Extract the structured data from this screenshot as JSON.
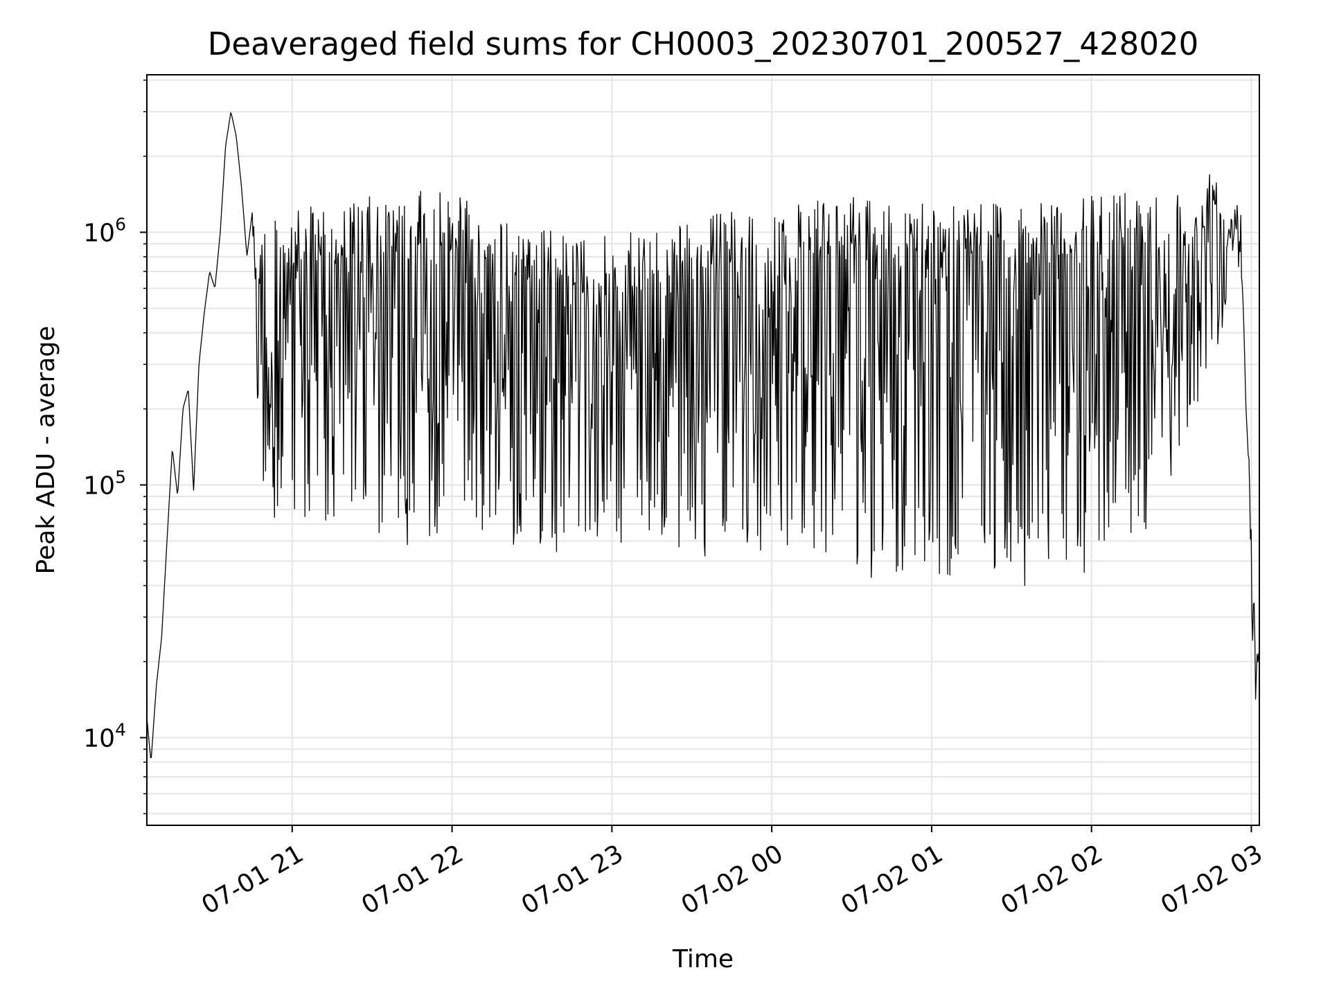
{
  "chart_data": {
    "type": "line",
    "title": "Deaveraged field sums for CH0003_20230701_200527_428020",
    "xlabel": "Time",
    "ylabel": "Peak ADU - average",
    "yscale": "log",
    "ylim": [
      4500,
      4200000
    ],
    "xlim": [
      "2023-07-01 20:05:27",
      "2023-07-02 03:03:00"
    ],
    "grid": true,
    "line_color": "#000000",
    "grid_color": "#e5e5e5",
    "x_ticks": [
      {
        "time": "2023-07-01 21:00",
        "label": "07-01 21"
      },
      {
        "time": "2023-07-01 22:00",
        "label": "07-01 22"
      },
      {
        "time": "2023-07-01 23:00",
        "label": "07-01 23"
      },
      {
        "time": "2023-07-02 00:00",
        "label": "07-02 00"
      },
      {
        "time": "2023-07-02 01:00",
        "label": "07-02 01"
      },
      {
        "time": "2023-07-02 02:00",
        "label": "07-02 02"
      },
      {
        "time": "2023-07-02 03:00",
        "label": "07-02 03"
      }
    ],
    "y_ticks": [
      {
        "value": 10000,
        "base": "10",
        "exp": "4"
      },
      {
        "value": 100000,
        "base": "10",
        "exp": "5"
      },
      {
        "value": 1000000,
        "base": "10",
        "exp": "6"
      }
    ],
    "series": [
      {
        "time": [
          "2023-07-01 20:05:27",
          "2023-07-01 20:07",
          "2023-07-01 20:09",
          "2023-07-01 20:11",
          "2023-07-01 20:13",
          "2023-07-01 20:15",
          "2023-07-01 20:17",
          "2023-07-01 20:19",
          "2023-07-01 20:21",
          "2023-07-01 20:23",
          "2023-07-01 20:25",
          "2023-07-01 20:27",
          "2023-07-01 20:29",
          "2023-07-01 20:31",
          "2023-07-01 20:33",
          "2023-07-01 20:35",
          "2023-07-01 20:37",
          "2023-07-01 20:39",
          "2023-07-01 20:41",
          "2023-07-01 20:43",
          "2023-07-01 20:45",
          "2023-07-01 20:47",
          "2023-07-01 20:50",
          "2023-07-01 20:55",
          "2023-07-01 21:00",
          "2023-07-01 21:10",
          "2023-07-01 21:20",
          "2023-07-01 21:30",
          "2023-07-01 21:40",
          "2023-07-01 21:50",
          "2023-07-01 22:00",
          "2023-07-01 22:10",
          "2023-07-01 22:20",
          "2023-07-01 22:30",
          "2023-07-01 22:40",
          "2023-07-01 22:50",
          "2023-07-01 23:00",
          "2023-07-01 23:10",
          "2023-07-01 23:20",
          "2023-07-01 23:30",
          "2023-07-01 23:40",
          "2023-07-01 23:50",
          "2023-07-02 00:00",
          "2023-07-02 00:10",
          "2023-07-02 00:20",
          "2023-07-02 00:30",
          "2023-07-02 00:40",
          "2023-07-02 00:50",
          "2023-07-02 01:00",
          "2023-07-02 01:10",
          "2023-07-02 01:20",
          "2023-07-02 01:30",
          "2023-07-02 01:40",
          "2023-07-02 01:50",
          "2023-07-02 02:00",
          "2023-07-02 02:10",
          "2023-07-02 02:20",
          "2023-07-02 02:30",
          "2023-07-02 02:40",
          "2023-07-02 02:45",
          "2023-07-02 02:48",
          "2023-07-02 02:50",
          "2023-07-02 02:52",
          "2023-07-02 02:55",
          "2023-07-02 02:57",
          "2023-07-02 02:58",
          "2023-07-02 02:59",
          "2023-07-02 03:00",
          "2023-07-02 03:01",
          "2023-07-02 03:02",
          "2023-07-02 03:03"
        ],
        "values": [
          12000,
          8000,
          16000,
          25000,
          60000,
          140000,
          90000,
          200000,
          240000,
          95000,
          300000,
          480000,
          700000,
          600000,
          1000000,
          2200000,
          3000000,
          2400000,
          1500000,
          800000,
          1200000,
          400000,
          700000,
          250000,
          300000,
          600000,
          200000,
          500000,
          350000,
          800000,
          900000,
          600000,
          200000,
          350000,
          500000,
          280000,
          150000,
          250000,
          300000,
          400000,
          250000,
          300000,
          350000,
          250000,
          300000,
          450000,
          400000,
          300000,
          450000,
          350000,
          400000,
          300000,
          250000,
          180000,
          320000,
          400000,
          600000,
          500000,
          600000,
          700000,
          800000,
          900000,
          1000000,
          1400000,
          500000,
          200000,
          120000,
          60000,
          25000,
          40000,
          22000
        ],
        "low_envelope": [
          12000,
          8000,
          16000,
          25000,
          60000,
          140000,
          90000,
          200000,
          240000,
          95000,
          300000,
          480000,
          700000,
          600000,
          1000000,
          2200000,
          3000000,
          2400000,
          1500000,
          800000,
          1200000,
          70000,
          80000,
          70000,
          60000,
          55000,
          60000,
          65000,
          55000,
          60000,
          70000,
          60000,
          55000,
          60000,
          52000,
          55000,
          55000,
          58000,
          55000,
          52000,
          50000,
          55000,
          55000,
          55000,
          50000,
          45000,
          42000,
          45000,
          40000,
          45000,
          42000,
          40000,
          39000,
          40000,
          45000,
          50000,
          60000,
          100000,
          200000,
          300000,
          300000,
          350000,
          500000,
          1000000,
          500000,
          200000,
          120000,
          20000,
          15000,
          11000,
          22000
        ],
        "high_envelope": [
          12000,
          8000,
          16000,
          25000,
          60000,
          140000,
          90000,
          200000,
          240000,
          95000,
          300000,
          480000,
          700000,
          600000,
          1000000,
          2200000,
          3000000,
          2400000,
          1500000,
          800000,
          1200000,
          1000000,
          1200000,
          1200000,
          1200000,
          1300000,
          1300000,
          1400000,
          1300000,
          1500000,
          1600000,
          1300000,
          1100000,
          1100000,
          1000000,
          950000,
          1000000,
          1000000,
          1100000,
          1100000,
          1200000,
          1250000,
          1300000,
          1300000,
          1350000,
          1400000,
          1300000,
          1300000,
          1400000,
          1350000,
          1400000,
          1300000,
          1300000,
          1350000,
          1400000,
          1500000,
          1600000,
          1500000,
          1400000,
          2300000,
          1400000,
          1400000,
          1500000,
          1400000,
          500000,
          200000,
          130000,
          80000,
          40000,
          40000,
          22000
        ]
      }
    ]
  }
}
